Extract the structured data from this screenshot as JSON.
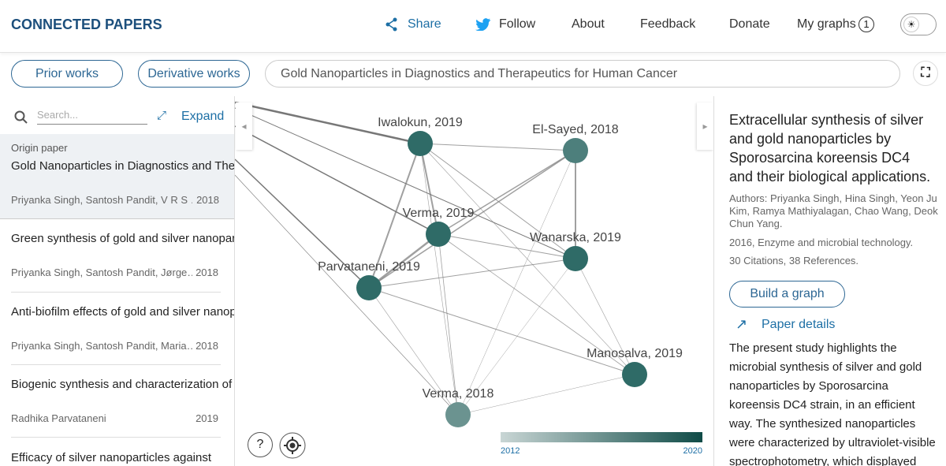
{
  "header": {
    "brand": "CONNECTED PAPERS",
    "share": "Share",
    "follow": "Follow",
    "about": "About",
    "feedback": "Feedback",
    "donate": "Donate",
    "my_graphs": "My graphs",
    "graph_count": 1
  },
  "toolbar": {
    "prior": "Prior works",
    "derivative": "Derivative works",
    "search_value": "Gold Nanoparticles in Diagnostics and Therapeutics for Human Cancer"
  },
  "sidebar": {
    "search_placeholder": "Search...",
    "expand": "Expand",
    "origin_label": "Origin paper",
    "origin": {
      "title": "Gold Nanoparticles in Diagnostics and Therapeutics for Human Cancer",
      "authors": "Priyanka Singh, Santosh Pandit, V R S …",
      "year": 2018
    },
    "papers": [
      {
        "title": "Green synthesis of gold and silver nanoparticles from Cannabis sativa…",
        "authors": "Priyanka Singh, Santosh Pandit, Jørge…",
        "year": 2018
      },
      {
        "title": "Anti-biofilm effects of gold and silver nanoparticles synthesized by the…",
        "authors": "Priyanka Singh, Santosh Pandit, Maria…",
        "year": 2018
      },
      {
        "title": "Biogenic synthesis and characterization of silver nanoparticle…",
        "authors": "Radhika Parvataneni",
        "year": 2019
      },
      {
        "title": "Efficacy of silver nanoparticles against"
      }
    ]
  },
  "graph": {
    "nodes": [
      {
        "label": "Iwalokun, 2019"
      },
      {
        "label": "El-Sayed, 2018"
      },
      {
        "label": "Verma, 2019"
      },
      {
        "label": "Wanarska, 2019"
      },
      {
        "label": "Parvataneni, 2019"
      },
      {
        "label": "Manosalva, 2019"
      },
      {
        "label": "Verma, 2018"
      }
    ],
    "legend": {
      "min": 2012,
      "max": 2020
    },
    "help": "?"
  },
  "details": {
    "title": "Extracellular synthesis of silver and gold nanoparticles by Sporosarcina koreensis DC4 and their biological applications.",
    "authors": "Authors: Priyanka Singh, Hina Singh, Yeon Ju Kim, Ramya Mathiyalagan, Chao Wang, Deok Chun Yang.",
    "venue": "2016, Enzyme and microbial technology.",
    "counts": "30 Citations, 38 References.",
    "build": "Build a graph",
    "paper_details": "Paper details",
    "abstract": "The present study highlights the microbial synthesis of silver and gold nanoparticles by Sporosarcina koreensis DC4 strain, in an efficient way. The synthesized nanoparticles were characterized by ultraviolet-visible spectrophotometry, which displayed"
  }
}
